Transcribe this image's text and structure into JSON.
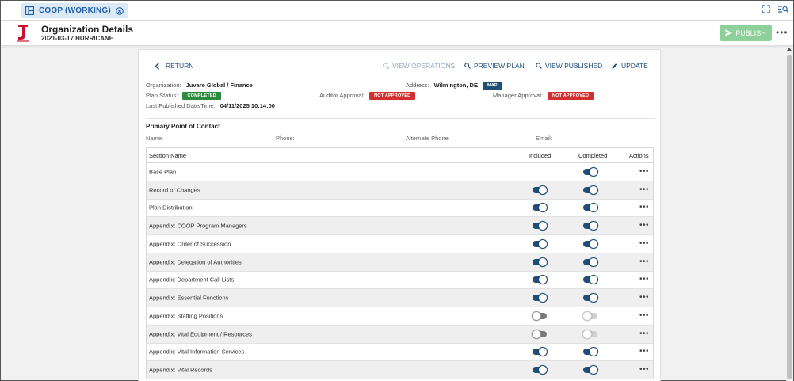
{
  "topbar": {
    "tab_label": "COOP (WORKING)"
  },
  "header": {
    "title": "Organization Details",
    "subtitle": "2021-03-17 HURRICANE",
    "publish_label": "PUBLISH"
  },
  "actions": {
    "return": "RETURN",
    "view_operations": "VIEW OPERATIONS",
    "preview_plan": "PREVIEW PLAN",
    "view_published": "VIEW PUBLISHED",
    "update": "UPDATE"
  },
  "info": {
    "organization_label": "Organization:",
    "organization_value": "Juvare Global / Finance",
    "address_label": "Address:",
    "address_value": "Wilmington, DE",
    "map_label": "MAP",
    "plan_status_label": "Plan Status:",
    "plan_status_value": "COMPLETED",
    "auditor_label": "Auditor Approval:",
    "auditor_value": "NOT APPROVED",
    "manager_label": "Manager Approval:",
    "manager_value": "NOT APPROVED",
    "last_published_label": "Last Published Date/Time:",
    "last_published_value": "04/11/2025 10:14:00"
  },
  "poc": {
    "title": "Primary Point of Contact",
    "name_label": "Name:",
    "phone_label": "Phone:",
    "alt_phone_label": "Alternate Phone:",
    "email_label": "Email:"
  },
  "table": {
    "headers": {
      "name": "Section Name",
      "included": "Included",
      "completed": "Completed",
      "actions": "Actions"
    },
    "rows": [
      {
        "name": "Base Plan",
        "included": "none",
        "completed": "on"
      },
      {
        "name": "Record of Changes",
        "included": "on",
        "completed": "on"
      },
      {
        "name": "Plan Distribution",
        "included": "on",
        "completed": "on"
      },
      {
        "name": "Appendix: COOP Program Managers",
        "included": "on",
        "completed": "on"
      },
      {
        "name": "Appendix: Order of Succession",
        "included": "on",
        "completed": "on"
      },
      {
        "name": "Appendix: Delegation of Authorities",
        "included": "on",
        "completed": "on"
      },
      {
        "name": "Appendix: Department Call Lists",
        "included": "on",
        "completed": "on"
      },
      {
        "name": "Appendix: Essential Functions",
        "included": "on",
        "completed": "on"
      },
      {
        "name": "Appendix: Staffing Positions",
        "included": "off",
        "completed": "disabled"
      },
      {
        "name": "Appendix: Vital Equipment / Resources",
        "included": "off",
        "completed": "disabled"
      },
      {
        "name": "Appendix: Vital Information Services",
        "included": "on",
        "completed": "on"
      },
      {
        "name": "Appendix: Vital Records",
        "included": "on",
        "completed": "on"
      }
    ]
  }
}
